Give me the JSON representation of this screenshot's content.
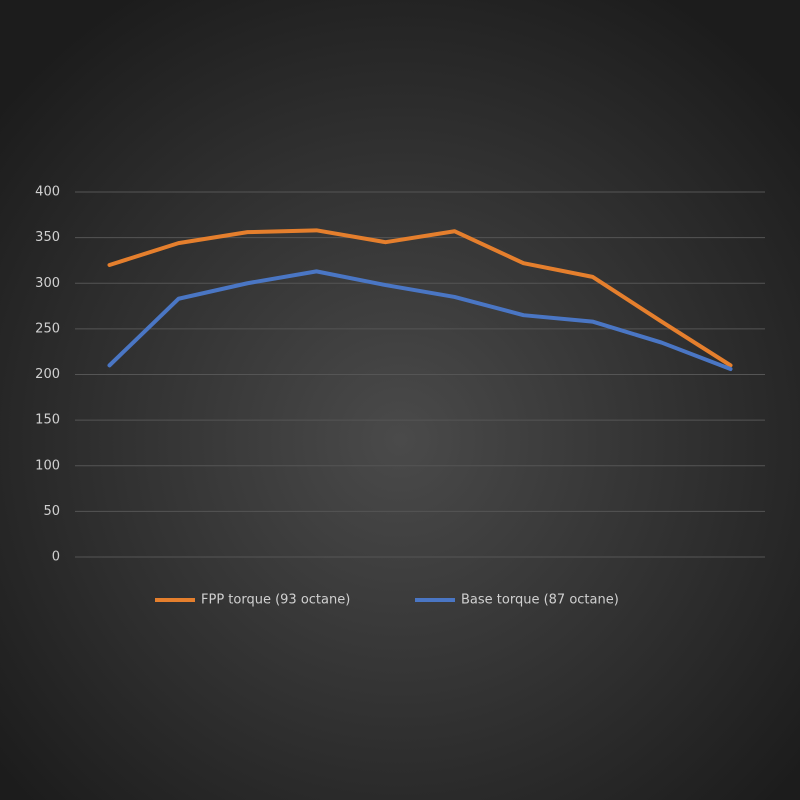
{
  "chart_data": {
    "type": "line",
    "categories": [
      null,
      null,
      null,
      null,
      null,
      null,
      null,
      null,
      null,
      null
    ],
    "series": [
      {
        "name": "FPP torque (93 octane)",
        "color": "#e57f2d",
        "values": [
          320,
          344,
          356,
          358,
          345,
          357,
          322,
          307,
          258,
          210
        ]
      },
      {
        "name": "Base torque (87 octane)",
        "color": "#4a76c4",
        "values": [
          210,
          283,
          300,
          313,
          298,
          285,
          265,
          258,
          235,
          206
        ]
      }
    ],
    "ylim": [
      0,
      400
    ],
    "yticks": [
      0,
      50,
      100,
      150,
      200,
      250,
      300,
      350,
      400
    ],
    "grid": true,
    "legend": "bottom"
  }
}
